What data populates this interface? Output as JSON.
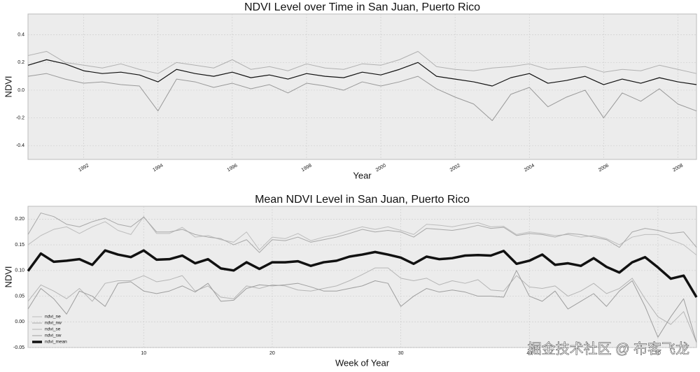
{
  "chart_data": [
    {
      "type": "line",
      "title": "NDVI Level over Time in San Juan, Puerto Rico",
      "x_label": "Year",
      "y_label": "NDVI",
      "x": [
        1990.5,
        1991,
        1991.5,
        1992,
        1992.5,
        1993,
        1993.5,
        1994,
        1994.5,
        1995,
        1995.5,
        1996,
        1996.5,
        1997,
        1997.5,
        1998,
        1998.5,
        1999,
        1999.5,
        2000,
        2000.5,
        2001,
        2001.5,
        2002,
        2002.5,
        2003,
        2003.5,
        2004,
        2004.5,
        2005,
        2005.5,
        2006,
        2006.5,
        2007,
        2007.5,
        2008,
        2008.5
      ],
      "series": [
        {
          "color": "#b0b0b0",
          "linewidth": 1,
          "values": [
            0.25,
            0.28,
            0.2,
            0.18,
            0.16,
            0.19,
            0.15,
            0.12,
            0.2,
            0.18,
            0.16,
            0.22,
            0.15,
            0.17,
            0.14,
            0.19,
            0.16,
            0.15,
            0.19,
            0.18,
            0.22,
            0.28,
            0.17,
            0.15,
            0.14,
            0.16,
            0.17,
            0.19,
            0.15,
            0.16,
            0.17,
            0.13,
            0.15,
            0.14,
            0.18,
            0.15,
            0.12
          ]
        },
        {
          "color": "#999999",
          "linewidth": 1,
          "values": [
            0.1,
            0.12,
            0.08,
            0.05,
            0.06,
            0.04,
            0.03,
            -0.15,
            0.08,
            0.06,
            0.02,
            0.05,
            0.01,
            0.04,
            -0.02,
            0.05,
            0.03,
            0.0,
            0.06,
            0.03,
            0.06,
            0.1,
            0.01,
            -0.05,
            -0.1,
            -0.22,
            -0.03,
            0.02,
            -0.12,
            -0.05,
            0.0,
            -0.2,
            -0.02,
            -0.08,
            0.01,
            -0.1,
            -0.15
          ]
        },
        {
          "color": "#111111",
          "linewidth": 1.2,
          "values": [
            0.18,
            0.22,
            0.19,
            0.14,
            0.12,
            0.13,
            0.11,
            0.06,
            0.15,
            0.12,
            0.1,
            0.13,
            0.09,
            0.11,
            0.08,
            0.12,
            0.1,
            0.09,
            0.13,
            0.11,
            0.15,
            0.2,
            0.1,
            0.08,
            0.06,
            0.03,
            0.09,
            0.12,
            0.05,
            0.07,
            0.1,
            0.04,
            0.08,
            0.05,
            0.09,
            0.06,
            0.04
          ]
        }
      ],
      "xlim": [
        1990.5,
        2008.5
      ],
      "xticks": [
        1992,
        1994,
        1996,
        1998,
        2000,
        2002,
        2004,
        2006,
        2008
      ],
      "ylim": [
        -0.5,
        0.55
      ],
      "yticks": [
        -0.4,
        -0.2,
        {
          "value": 0,
          "label": "0.0"
        },
        0.2,
        0.4
      ],
      "grid": true
    },
    {
      "type": "line",
      "title": "Mean NDVI Level in San Juan, Puerto Rico",
      "x_label": "Week of Year",
      "y_label": "NDVI",
      "x": [
        1,
        2,
        3,
        4,
        5,
        6,
        7,
        8,
        9,
        10,
        11,
        12,
        13,
        14,
        15,
        16,
        17,
        18,
        19,
        20,
        21,
        22,
        23,
        24,
        25,
        26,
        27,
        28,
        29,
        30,
        31,
        32,
        33,
        34,
        35,
        36,
        37,
        38,
        39,
        40,
        41,
        42,
        43,
        44,
        45,
        46,
        47,
        48,
        49,
        50,
        51,
        52,
        53
      ],
      "series": [
        {
          "name": "ndvi_ne",
          "color": "#bdbdbd",
          "linewidth": 1,
          "values": [
            0.15,
            0.168,
            0.18,
            0.185,
            0.172,
            0.185,
            0.195,
            0.178,
            0.17,
            0.205,
            0.172,
            0.172,
            0.184,
            0.165,
            0.168,
            0.16,
            0.155,
            0.175,
            0.14,
            0.165,
            0.162,
            0.172,
            0.158,
            0.165,
            0.17,
            0.178,
            0.185,
            0.18,
            0.185,
            0.178,
            0.17,
            0.19,
            0.188,
            0.185,
            0.19,
            0.193,
            0.185,
            0.186,
            0.17,
            0.175,
            0.172,
            0.168,
            0.17,
            0.165,
            0.168,
            0.162,
            0.15,
            0.165,
            0.17,
            0.17,
            0.16,
            0.15,
            0.13
          ]
        },
        {
          "name": "ndvi_nw",
          "color": "#a8a8a8",
          "linewidth": 1,
          "values": [
            0.17,
            0.212,
            0.205,
            0.19,
            0.185,
            0.195,
            0.202,
            0.19,
            0.185,
            0.204,
            0.175,
            0.175,
            0.18,
            0.17,
            0.165,
            0.162,
            0.15,
            0.16,
            0.135,
            0.16,
            0.158,
            0.165,
            0.155,
            0.16,
            0.165,
            0.172,
            0.18,
            0.175,
            0.178,
            0.175,
            0.165,
            0.182,
            0.18,
            0.178,
            0.182,
            0.188,
            0.182,
            0.184,
            0.168,
            0.172,
            0.17,
            0.165,
            0.172,
            0.17,
            0.165,
            0.16,
            0.145,
            0.175,
            0.182,
            0.178,
            0.172,
            0.175,
            0.145
          ]
        },
        {
          "name": "ndvi_se",
          "color": "#b5b5b5",
          "linewidth": 1,
          "values": [
            0.04,
            0.072,
            0.06,
            0.045,
            0.065,
            0.04,
            0.075,
            0.08,
            0.08,
            0.09,
            0.078,
            0.082,
            0.09,
            0.06,
            0.07,
            0.048,
            0.045,
            0.07,
            0.065,
            0.072,
            0.07,
            0.062,
            0.06,
            0.065,
            0.07,
            0.08,
            0.092,
            0.105,
            0.105,
            0.085,
            0.08,
            0.085,
            0.072,
            0.08,
            0.075,
            0.082,
            0.062,
            0.06,
            0.09,
            0.068,
            0.065,
            0.07,
            0.05,
            0.06,
            0.075,
            0.055,
            0.065,
            0.085,
            0.045,
            0.01,
            -0.005,
            0.02,
            -0.04
          ]
        },
        {
          "name": "ndvi_sw",
          "color": "#9e9e9e",
          "linewidth": 1,
          "values": [
            0.025,
            0.065,
            0.045,
            0.015,
            0.06,
            0.05,
            0.03,
            0.075,
            0.078,
            0.06,
            0.055,
            0.06,
            0.07,
            0.058,
            0.075,
            0.04,
            0.042,
            0.065,
            0.072,
            0.07,
            0.072,
            0.075,
            0.068,
            0.06,
            0.06,
            0.065,
            0.07,
            0.08,
            0.075,
            0.03,
            0.05,
            0.065,
            0.058,
            0.062,
            0.058,
            0.05,
            0.05,
            0.048,
            0.1,
            0.05,
            0.04,
            0.06,
            0.025,
            0.04,
            0.055,
            0.03,
            0.06,
            0.08,
            0.03,
            -0.03,
            0.01,
            0.045,
            -0.04
          ]
        },
        {
          "name": "ndvi_mean",
          "color": "#111111",
          "linewidth": 3.5,
          "values": [
            0.099,
            0.133,
            0.117,
            0.119,
            0.122,
            0.111,
            0.139,
            0.131,
            0.126,
            0.139,
            0.121,
            0.122,
            0.129,
            0.114,
            0.122,
            0.104,
            0.1,
            0.116,
            0.103,
            0.116,
            0.116,
            0.118,
            0.109,
            0.116,
            0.119,
            0.127,
            0.131,
            0.136,
            0.131,
            0.125,
            0.113,
            0.127,
            0.122,
            0.124,
            0.129,
            0.13,
            0.129,
            0.138,
            0.113,
            0.119,
            0.131,
            0.111,
            0.114,
            0.109,
            0.124,
            0.107,
            0.096,
            0.116,
            0.126,
            0.106,
            0.084,
            0.09,
            0.048
          ]
        }
      ],
      "xlim": [
        1,
        53
      ],
      "xticks": [
        10,
        20,
        30,
        40,
        50
      ],
      "ylim": [
        -0.05,
        0.225
      ],
      "yticks": [
        -0.05,
        {
          "value": 0,
          "label": "0.00"
        },
        0.05,
        {
          "value": 0.1,
          "label": "0.10"
        },
        0.15,
        {
          "value": 0.2,
          "label": "0.20"
        }
      ],
      "grid": true,
      "legend": "lower left"
    }
  ],
  "watermark": "掘金技术社区 @ 布客飞龙"
}
